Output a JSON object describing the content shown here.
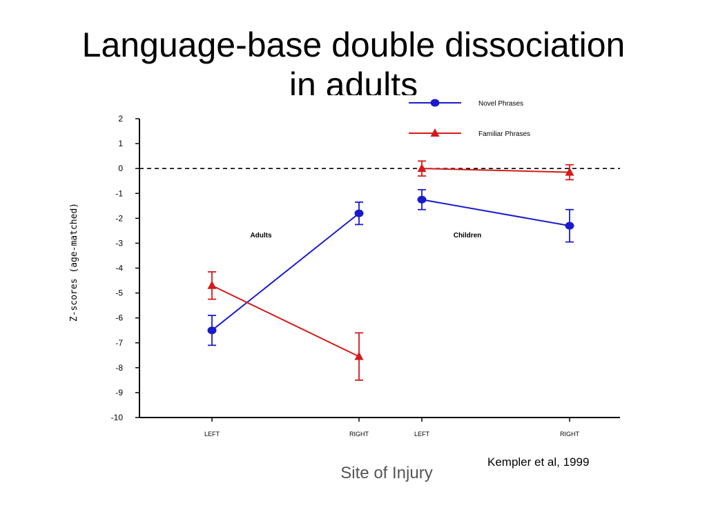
{
  "slide": {
    "title_line1": "Language-base double dissociation",
    "title_line2": "in adults",
    "x_axis_title": "Site of Injury",
    "citation": "Kempler et al, 1999"
  },
  "chart_data": {
    "type": "line",
    "ylabel": "Z-scores (age-matched)",
    "ylim": [
      -10,
      2
    ],
    "yticks": [
      2,
      1,
      0,
      -1,
      -2,
      -3,
      -4,
      -5,
      -6,
      -7,
      -8,
      -9,
      -10
    ],
    "reference_line": 0,
    "groups": [
      {
        "name": "Adults",
        "categories": [
          "LEFT",
          "RIGHT"
        ]
      },
      {
        "name": "Children",
        "categories": [
          "LEFT",
          "RIGHT"
        ]
      }
    ],
    "legend_position": "top-right",
    "series": [
      {
        "name": "Novel Phrases",
        "color": "#1a1acc",
        "marker": "circle",
        "groups": [
          {
            "values": [
              -6.5,
              -1.8
            ],
            "errors": [
              0.6,
              0.45
            ]
          },
          {
            "values": [
              -1.25,
              -2.3
            ],
            "errors": [
              0.4,
              0.65
            ]
          }
        ]
      },
      {
        "name": "Familiar Phrases",
        "color": "#d41a1a",
        "marker": "triangle",
        "groups": [
          {
            "values": [
              -4.7,
              -7.55
            ],
            "errors": [
              0.55,
              0.95
            ]
          },
          {
            "values": [
              0.0,
              -0.15
            ],
            "errors": [
              0.3,
              0.3
            ]
          }
        ]
      }
    ]
  }
}
